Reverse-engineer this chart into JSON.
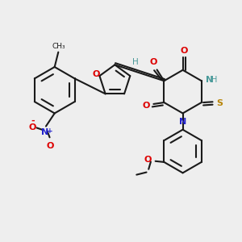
{
  "bg_color": "#eeeeee",
  "bond_color": "#1a1a1a",
  "bw": 1.5,
  "dbo": 0.045,
  "atom_colors": {
    "O": "#dd0000",
    "N": "#2222cc",
    "S": "#b8860b",
    "H": "#4a9a9a",
    "C": "#1a1a1a"
  }
}
